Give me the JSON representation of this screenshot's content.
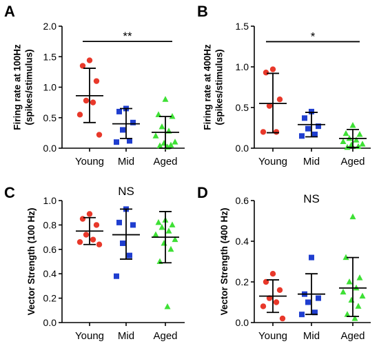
{
  "chart_data": [
    {
      "type": "scatter",
      "panel_label": "A",
      "ylabel": [
        "Firing rate at 100Hz",
        "(spikes/stimulus)"
      ],
      "categories": [
        "Young",
        "Mid",
        "Aged"
      ],
      "ylim": [
        0,
        2.0
      ],
      "yticks": [
        "0.0",
        "0.5",
        "1.0",
        "1.5",
        "2.0"
      ],
      "ytick_values": [
        0,
        0.5,
        1.0,
        1.5,
        2.0
      ],
      "significance": {
        "text": "**",
        "from": "Young",
        "to": "Aged",
        "y": 1.75
      },
      "series": [
        {
          "group": "Young",
          "color": "#e8382a",
          "marker": "circle",
          "values": [
            1.44,
            1.35,
            1.1,
            0.78,
            0.75,
            0.55,
            0.22
          ],
          "mean": 0.86,
          "sd_low": 0.42,
          "sd_high": 1.31
        },
        {
          "group": "Mid",
          "color": "#1f3ecf",
          "marker": "square",
          "values": [
            0.65,
            0.6,
            0.42,
            0.3,
            0.12,
            0.1
          ],
          "mean": 0.4,
          "sd_low": 0.16,
          "sd_high": 0.65
        },
        {
          "group": "Aged",
          "color": "#3ee035",
          "marker": "triangle",
          "values": [
            0.8,
            0.55,
            0.52,
            0.35,
            0.28,
            0.2,
            0.1,
            0.08,
            0.05,
            0.04,
            0.02
          ],
          "mean": 0.26,
          "sd_low": 0.0,
          "sd_high": 0.52
        }
      ]
    },
    {
      "type": "scatter",
      "panel_label": "B",
      "ylabel": [
        "Firing rate at 400Hz",
        "(spikes/stimulus)"
      ],
      "categories": [
        "Young",
        "Mid",
        "Aged"
      ],
      "ylim": [
        0,
        1.5
      ],
      "yticks": [
        "0.0",
        "0.5",
        "1.0",
        "1.5"
      ],
      "ytick_values": [
        0,
        0.5,
        1.0,
        1.5
      ],
      "significance": {
        "text": "*",
        "from": "Young",
        "to": "Aged",
        "y": 1.31
      },
      "series": [
        {
          "group": "Young",
          "color": "#e8382a",
          "marker": "circle",
          "values": [
            0.97,
            0.93,
            0.6,
            0.52,
            0.2,
            0.2
          ],
          "mean": 0.55,
          "sd_low": 0.19,
          "sd_high": 0.92
        },
        {
          "group": "Mid",
          "color": "#1f3ecf",
          "marker": "square",
          "values": [
            0.45,
            0.37,
            0.27,
            0.24,
            0.17,
            0.15
          ],
          "mean": 0.29,
          "sd_low": 0.14,
          "sd_high": 0.44
        },
        {
          "group": "Aged",
          "color": "#3ee035",
          "marker": "triangle",
          "values": [
            0.28,
            0.18,
            0.17,
            0.12,
            0.1,
            0.08,
            0.05,
            0.04,
            0.02,
            0.01
          ],
          "mean": 0.12,
          "sd_low": 0.01,
          "sd_high": 0.23
        }
      ]
    },
    {
      "type": "scatter",
      "panel_label": "C",
      "ylabel": [
        "Vector Strength (100 Hz)"
      ],
      "categories": [
        "Young",
        "Mid",
        "Aged"
      ],
      "ylim": [
        0,
        1.0
      ],
      "yticks": [
        "0.0",
        "0.2",
        "0.4",
        "0.6",
        "0.8",
        "1.0"
      ],
      "ytick_values": [
        0,
        0.2,
        0.4,
        0.6,
        0.8,
        1.0
      ],
      "significance": {
        "text": "NS",
        "y": 1.08
      },
      "series": [
        {
          "group": "Young",
          "color": "#e8382a",
          "marker": "circle",
          "values": [
            0.89,
            0.85,
            0.8,
            0.72,
            0.68,
            0.66,
            0.64
          ],
          "mean": 0.75,
          "sd_low": 0.64,
          "sd_high": 0.86
        },
        {
          "group": "Mid",
          "color": "#1f3ecf",
          "marker": "square",
          "values": [
            0.93,
            0.82,
            0.8,
            0.65,
            0.55,
            0.38
          ],
          "mean": 0.72,
          "sd_low": 0.52,
          "sd_high": 0.93
        },
        {
          "group": "Aged",
          "color": "#3ee035",
          "marker": "triangle",
          "values": [
            0.84,
            0.82,
            0.8,
            0.78,
            0.75,
            0.72,
            0.68,
            0.65,
            0.6,
            0.5,
            0.13
          ],
          "mean": 0.7,
          "sd_low": 0.49,
          "sd_high": 0.91
        }
      ]
    },
    {
      "type": "scatter",
      "panel_label": "D",
      "ylabel": [
        "Vector Strength (400 Hz)"
      ],
      "categories": [
        "Young",
        "Mid",
        "Aged"
      ],
      "ylim": [
        0,
        0.6
      ],
      "yticks": [
        "0.0",
        "0.2",
        "0.4",
        "0.6"
      ],
      "ytick_values": [
        0,
        0.2,
        0.4,
        0.6
      ],
      "significance": {
        "text": "NS",
        "y": 0.61
      },
      "series": [
        {
          "group": "Young",
          "color": "#e8382a",
          "marker": "circle",
          "values": [
            0.24,
            0.2,
            0.16,
            0.12,
            0.1,
            0.08,
            0.02
          ],
          "mean": 0.13,
          "sd_low": 0.05,
          "sd_high": 0.21
        },
        {
          "group": "Mid",
          "color": "#1f3ecf",
          "marker": "square",
          "values": [
            0.32,
            0.14,
            0.12,
            0.1,
            0.05,
            0.04
          ],
          "mean": 0.14,
          "sd_low": 0.04,
          "sd_high": 0.24
        },
        {
          "group": "Aged",
          "color": "#3ee035",
          "marker": "triangle",
          "values": [
            0.52,
            0.32,
            0.22,
            0.2,
            0.17,
            0.15,
            0.13,
            0.11,
            0.08,
            0.04,
            0.02
          ],
          "mean": 0.17,
          "sd_low": 0.03,
          "sd_high": 0.32
        }
      ]
    }
  ]
}
